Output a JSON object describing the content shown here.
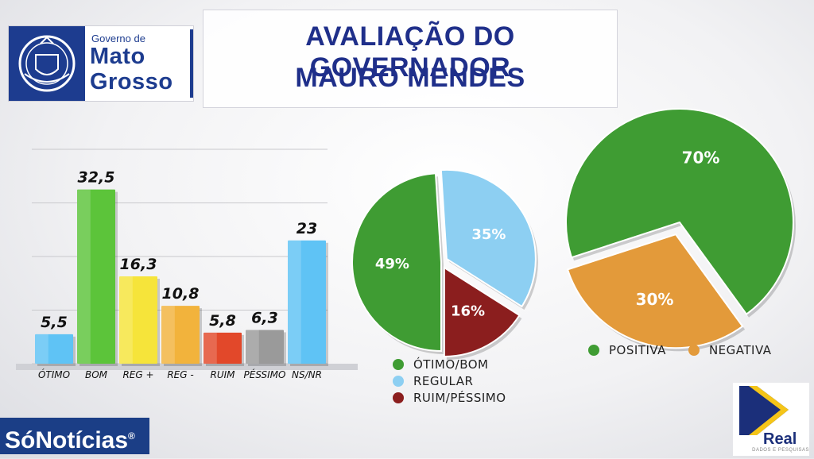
{
  "header": {
    "logo_small": "Governo de",
    "logo_line1": "Mato",
    "logo_line2": "Grosso",
    "title_line1": "AVALIAÇÃO DO GOVERNADOR",
    "title_line2": "MAURO MENDES"
  },
  "chart_data": [
    {
      "type": "bar",
      "categories": [
        "ÓTIMO",
        "BOM",
        "REG +",
        "REG -",
        "RUIM",
        "PÉSSIMO",
        "NS/NR"
      ],
      "values": [
        5.5,
        32.5,
        16.3,
        10.8,
        5.8,
        6.3,
        23
      ],
      "value_labels": [
        "5,5",
        "32,5",
        "16,3",
        "10,8",
        "5,8",
        "6,3",
        "23"
      ],
      "colors": [
        "#5fc3f5",
        "#5cc43a",
        "#f6e43a",
        "#f2b33c",
        "#e2482a",
        "#9a9a9a",
        "#5fc3f5"
      ],
      "ylim": [
        0,
        40
      ],
      "grid": true
    },
    {
      "type": "pie",
      "labels": [
        "ÓTIMO/BOM",
        "REGULAR",
        "RUIM/PÉSSIMO"
      ],
      "values": [
        49,
        35,
        16
      ],
      "value_labels": [
        "49%",
        "35%",
        "16%"
      ],
      "colors": [
        "#3f9c33",
        "#8dcff2",
        "#8b1e1e"
      ],
      "legend": "bottom"
    },
    {
      "type": "pie",
      "labels": [
        "POSITIVA",
        "NEGATIVA"
      ],
      "values": [
        70,
        30
      ],
      "value_labels": [
        "70%",
        "30%"
      ],
      "colors": [
        "#3f9c33",
        "#e39a3a"
      ],
      "legend": "bottom"
    }
  ],
  "footer": {
    "brand_left": "SóNotícias",
    "brand_left_mark": "®",
    "brand_right": "Real",
    "brand_right_sub": "DADOS E PESQUISAS"
  }
}
